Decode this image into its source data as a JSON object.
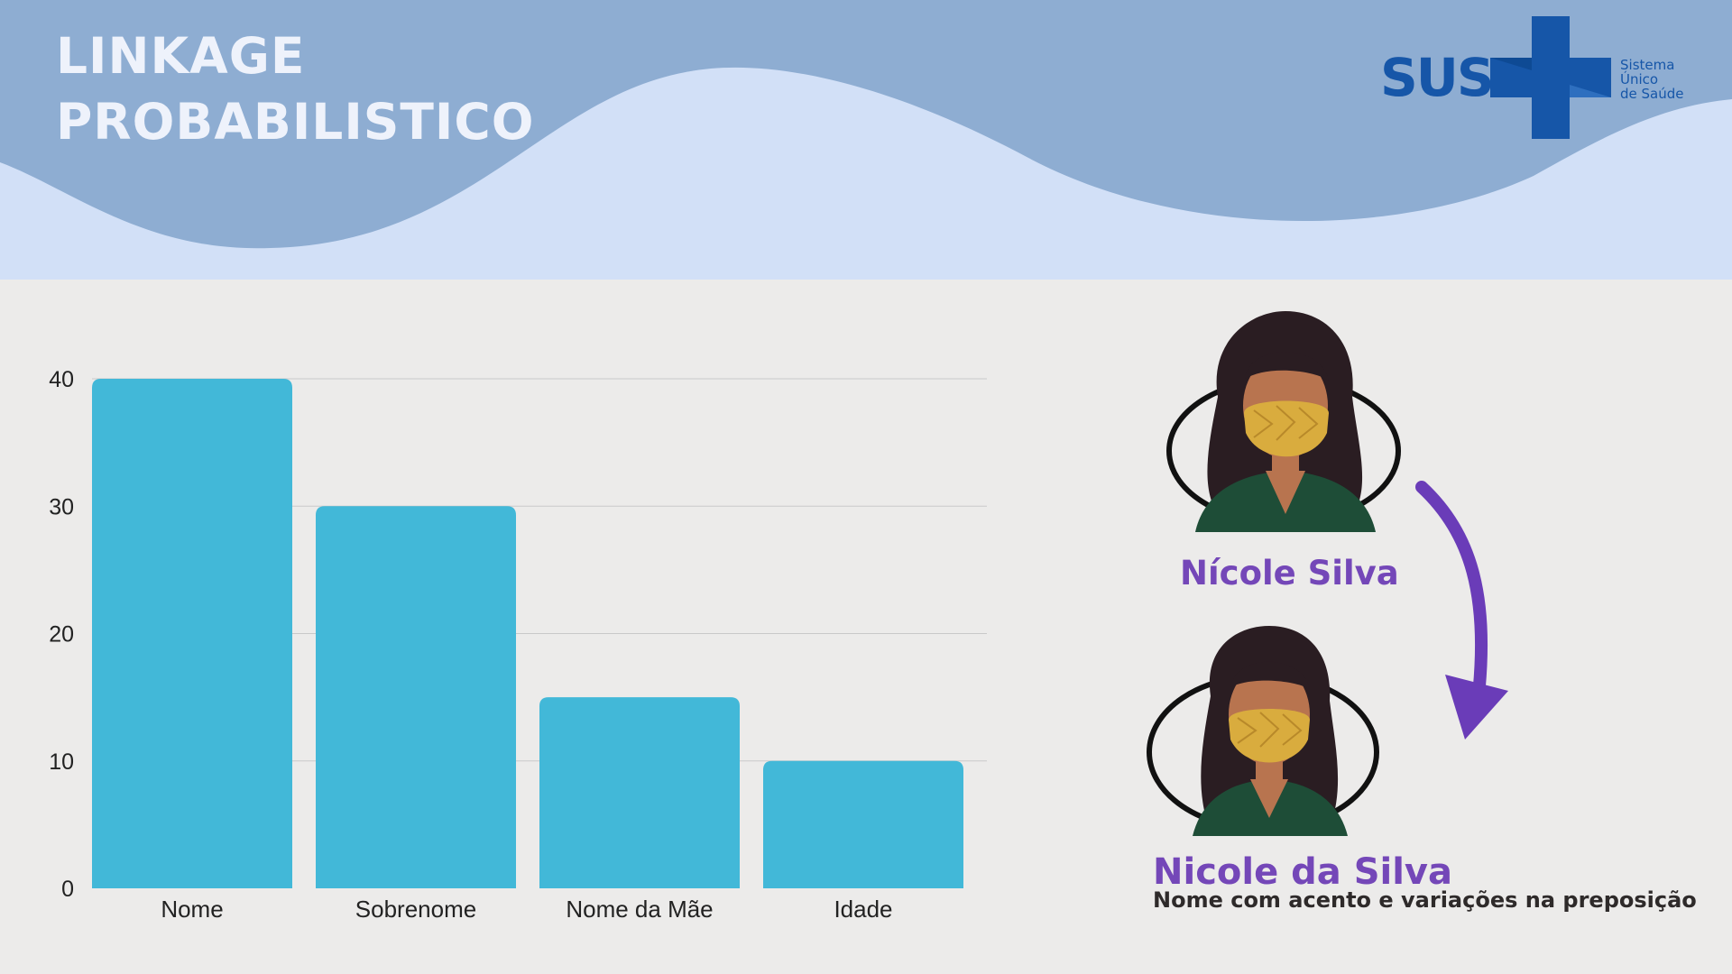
{
  "header": {
    "title_line1": "LINKAGE",
    "title_line2": "PROBABILISTICO",
    "logo": {
      "text": "SUS",
      "line1": "Sistema",
      "line2": "Único",
      "line3": "de Saúde"
    }
  },
  "chart_data": {
    "type": "bar",
    "categories": [
      "Nome",
      "Sobrenome",
      "Nome da Mãe",
      "Idade"
    ],
    "values": [
      40,
      30,
      15,
      10
    ],
    "yticks": [
      0,
      10,
      20,
      30,
      40
    ],
    "ylim": [
      0,
      40
    ],
    "grid": true,
    "bar_color": "#42b8d8",
    "title": "",
    "xlabel": "",
    "ylabel": ""
  },
  "illustration": {
    "name_before": "Nícole Silva",
    "name_after": "Nicole da Silva",
    "caption": "Nome com acento e variações na preposição",
    "accent_color": "#7447b8",
    "arrow_icon": "curved-arrow-down"
  },
  "colors": {
    "header_dark": "#8eadd2",
    "header_light": "#d2e0f7",
    "background": "#ecebea",
    "logo_blue": "#1656a8"
  }
}
